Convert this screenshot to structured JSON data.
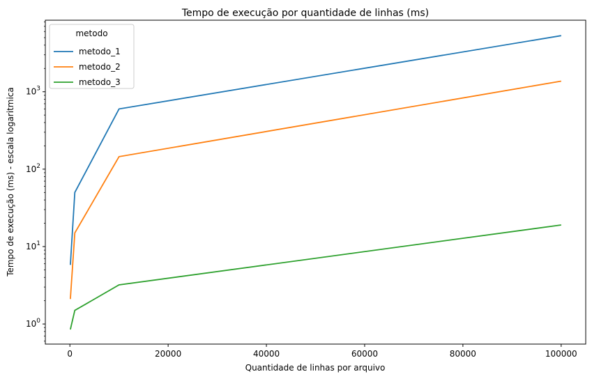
{
  "chart_data": {
    "type": "line",
    "title": "Tempo de execução por quantidade de linhas (ms)",
    "xlabel": "Quantidade de linhas por arquivo",
    "ylabel": "Tempo de execução (ms) - escala logaritmica",
    "xlim": [
      -5000,
      105000
    ],
    "ylim": [
      0.55,
      8400
    ],
    "y_scale": "log",
    "grid": false,
    "legend": {
      "title": "metodo",
      "placement": "top-left"
    },
    "x_ticks": [
      0,
      20000,
      40000,
      60000,
      80000,
      100000
    ],
    "x_tick_labels": [
      "0",
      "20000",
      "40000",
      "60000",
      "80000",
      "100000"
    ],
    "y_ticks": [
      1,
      10,
      100,
      1000
    ],
    "y_tick_labels": [
      {
        "base": "10",
        "exp": "0"
      },
      {
        "base": "10",
        "exp": "1"
      },
      {
        "base": "10",
        "exp": "2"
      },
      {
        "base": "10",
        "exp": "3"
      }
    ],
    "x": [
      100,
      1000,
      10000,
      100000
    ],
    "series": [
      {
        "name": "metodo_1",
        "color": "#1f77b4",
        "values": [
          5.8,
          50,
          600,
          5300
        ]
      },
      {
        "name": "metodo_2",
        "color": "#ff7f0e",
        "values": [
          2.1,
          15,
          145,
          1370
        ]
      },
      {
        "name": "metodo_3",
        "color": "#2ca02c",
        "values": [
          0.85,
          1.5,
          3.2,
          19
        ]
      }
    ]
  }
}
